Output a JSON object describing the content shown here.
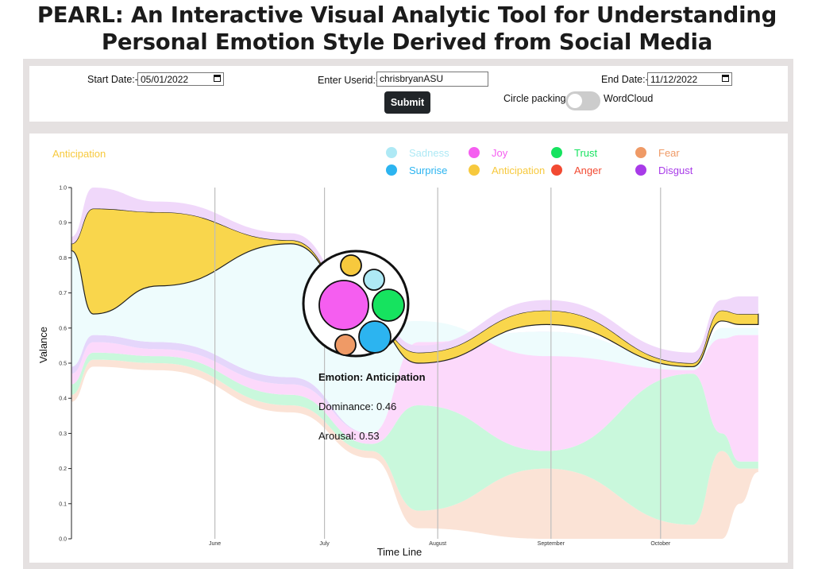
{
  "page_title": "PEARL: An Interactive Visual Analytic Tool for Understanding Personal Emotion Style Derived from Social Media",
  "controls": {
    "start_date_label": "Start Date:-",
    "start_date_value": "05/01/2022",
    "userid_label": "Enter Userid:-",
    "userid_value": "chrisbryanASU",
    "end_date_label": "End Date:-",
    "end_date_value": "11/12/2022",
    "submit_label": "Submit",
    "toggle_left_label": "Circle packing",
    "toggle_right_label": "WordCloud",
    "calendar_icon": "calendar-icon"
  },
  "colors": {
    "sadness": "#aee9f5",
    "surprise": "#2cb4f0",
    "joy": "#f55ef0",
    "anticipation": "#f7c93d",
    "trust": "#16e35f",
    "anger": "#f24a32",
    "fear": "#ef9a66",
    "disgust": "#a83be8"
  },
  "chart_data": {
    "type": "area",
    "selected_emotion_label": "Anticipation",
    "ylabel": "Valance",
    "xlabel": "Time Line",
    "ylim": [
      0.0,
      1.0
    ],
    "y_ticks": [
      "0.0",
      "0.1",
      "0.2",
      "0.3",
      "0.4",
      "0.5",
      "0.6",
      "0.7",
      "0.8",
      "0.9",
      "1.0"
    ],
    "x_ticks": [
      {
        "label": "June",
        "date": "2022-06-01"
      },
      {
        "label": "July",
        "date": "2022-07-01"
      },
      {
        "label": "August",
        "date": "2022-08-01"
      },
      {
        "label": "September",
        "date": "2022-09-01"
      },
      {
        "label": "October",
        "date": "2022-10-01"
      }
    ],
    "grid": "vertical",
    "legend": [
      {
        "name": "Sadness",
        "color": "#aee9f5"
      },
      {
        "name": "Joy",
        "color": "#f55ef0"
      },
      {
        "name": "Trust",
        "color": "#16e35f"
      },
      {
        "name": "Fear",
        "color": "#ef9a66"
      },
      {
        "name": "Surprise",
        "color": "#2cb4f0"
      },
      {
        "name": "Anticipation",
        "color": "#f7c93d"
      },
      {
        "name": "Anger",
        "color": "#f24a32"
      },
      {
        "name": "Disgust",
        "color": "#a83be8"
      }
    ],
    "legend_placement": "top-right",
    "streams": [
      {
        "name": "Fear",
        "lower": [
          [
            0,
            0.39
          ],
          [
            6,
            0.49
          ],
          [
            24,
            0.48
          ],
          [
            60,
            0.36
          ],
          [
            82,
            0.23
          ],
          [
            95,
            0.03
          ],
          [
            130,
            0.0
          ],
          [
            170,
            0.0
          ],
          [
            178,
            0.0
          ],
          [
            183,
            0.1
          ],
          [
            188,
            0.19
          ]
        ],
        "upper": [
          [
            0,
            0.41
          ],
          [
            6,
            0.51
          ],
          [
            24,
            0.5
          ],
          [
            60,
            0.38
          ],
          [
            82,
            0.25
          ],
          [
            95,
            0.08
          ],
          [
            130,
            0.2
          ],
          [
            170,
            0.04
          ],
          [
            178,
            0.25
          ],
          [
            183,
            0.2
          ],
          [
            188,
            0.2
          ]
        ]
      },
      {
        "name": "Trust",
        "lower": [
          [
            0,
            0.41
          ],
          [
            6,
            0.51
          ],
          [
            24,
            0.5
          ],
          [
            60,
            0.38
          ],
          [
            82,
            0.25
          ],
          [
            95,
            0.08
          ],
          [
            130,
            0.2
          ],
          [
            170,
            0.04
          ],
          [
            178,
            0.25
          ],
          [
            183,
            0.2
          ],
          [
            188,
            0.2
          ]
        ],
        "upper": [
          [
            0,
            0.44
          ],
          [
            6,
            0.53
          ],
          [
            24,
            0.52
          ],
          [
            60,
            0.41
          ],
          [
            82,
            0.27
          ],
          [
            95,
            0.38
          ],
          [
            130,
            0.25
          ],
          [
            170,
            0.47
          ],
          [
            178,
            0.3
          ],
          [
            183,
            0.22
          ],
          [
            188,
            0.22
          ]
        ]
      },
      {
        "name": "Joy",
        "lower": [
          [
            0,
            0.44
          ],
          [
            6,
            0.53
          ],
          [
            24,
            0.52
          ],
          [
            60,
            0.41
          ],
          [
            82,
            0.27
          ],
          [
            95,
            0.38
          ],
          [
            130,
            0.25
          ],
          [
            170,
            0.47
          ],
          [
            178,
            0.3
          ],
          [
            183,
            0.22
          ],
          [
            188,
            0.22
          ]
        ],
        "upper": [
          [
            0,
            0.47
          ],
          [
            6,
            0.56
          ],
          [
            24,
            0.54
          ],
          [
            60,
            0.44
          ],
          [
            82,
            0.3
          ],
          [
            95,
            0.56
          ],
          [
            130,
            0.59
          ],
          [
            170,
            0.5
          ],
          [
            178,
            0.57
          ],
          [
            183,
            0.58
          ],
          [
            188,
            0.58
          ]
        ]
      },
      {
        "name": "Disgust",
        "lower": [
          [
            0,
            0.47
          ],
          [
            6,
            0.56
          ],
          [
            24,
            0.54
          ],
          [
            60,
            0.44
          ],
          [
            82,
            0.3
          ],
          [
            95,
            0.56
          ],
          [
            130,
            0.59
          ],
          [
            170,
            0.5
          ],
          [
            178,
            0.57
          ],
          [
            183,
            0.58
          ],
          [
            188,
            0.58
          ]
        ],
        "upper": [
          [
            0,
            0.49
          ],
          [
            6,
            0.58
          ],
          [
            24,
            0.56
          ],
          [
            60,
            0.46
          ],
          [
            82,
            0.3
          ],
          [
            95,
            0.56
          ],
          [
            130,
            0.59
          ],
          [
            170,
            0.5
          ],
          [
            178,
            0.57
          ],
          [
            183,
            0.58
          ],
          [
            188,
            0.58
          ]
        ]
      },
      {
        "name": "Sadness",
        "lower": [
          [
            0,
            0.49
          ],
          [
            6,
            0.58
          ],
          [
            24,
            0.56
          ],
          [
            60,
            0.46
          ],
          [
            82,
            0.3
          ],
          [
            95,
            0.56
          ],
          [
            130,
            0.59
          ],
          [
            170,
            0.5
          ],
          [
            178,
            0.57
          ],
          [
            183,
            0.58
          ],
          [
            188,
            0.58
          ]
        ],
        "upper": [
          [
            0,
            0.82
          ],
          [
            6,
            0.64
          ],
          [
            24,
            0.72
          ],
          [
            60,
            0.84
          ],
          [
            82,
            0.61
          ],
          [
            95,
            0.62
          ],
          [
            130,
            0.52
          ],
          [
            170,
            0.48
          ],
          [
            178,
            0.6
          ],
          [
            183,
            0.6
          ],
          [
            188,
            0.6
          ]
        ]
      },
      {
        "name": "Anticipation",
        "lower": [
          [
            0,
            0.82
          ],
          [
            6,
            0.64
          ],
          [
            24,
            0.72
          ],
          [
            60,
            0.84
          ],
          [
            82,
            0.61
          ],
          [
            95,
            0.5
          ],
          [
            130,
            0.61
          ],
          [
            170,
            0.49
          ],
          [
            178,
            0.62
          ],
          [
            183,
            0.61
          ],
          [
            188,
            0.61
          ]
        ],
        "upper": [
          [
            0,
            0.84
          ],
          [
            6,
            0.94
          ],
          [
            24,
            0.93
          ],
          [
            60,
            0.85
          ],
          [
            82,
            0.61
          ],
          [
            95,
            0.53
          ],
          [
            130,
            0.65
          ],
          [
            170,
            0.5
          ],
          [
            178,
            0.65
          ],
          [
            183,
            0.64
          ],
          [
            188,
            0.64
          ]
        ]
      },
      {
        "name": "Disgust-top",
        "lower": [
          [
            0,
            0.84
          ],
          [
            6,
            0.94
          ],
          [
            24,
            0.93
          ],
          [
            60,
            0.85
          ],
          [
            82,
            0.61
          ],
          [
            95,
            0.53
          ],
          [
            130,
            0.65
          ],
          [
            170,
            0.5
          ],
          [
            178,
            0.65
          ],
          [
            183,
            0.64
          ],
          [
            188,
            0.64
          ]
        ],
        "upper": [
          [
            0,
            0.86
          ],
          [
            6,
            1.0
          ],
          [
            24,
            0.96
          ],
          [
            60,
            0.87
          ],
          [
            82,
            0.63
          ],
          [
            95,
            0.55
          ],
          [
            130,
            0.68
          ],
          [
            170,
            0.53
          ],
          [
            178,
            0.68
          ],
          [
            183,
            0.69
          ],
          [
            188,
            0.69
          ]
        ]
      }
    ],
    "tooltip": {
      "emotion_line": "Emotion: Anticipation",
      "dominance_line": "Dominance: 0.46",
      "arousal_line": "Arousal: 0.53"
    },
    "circle_packing": [
      {
        "name": "Anticipation",
        "color": "#f7c93d"
      },
      {
        "name": "Sadness",
        "color": "#aee9f5"
      },
      {
        "name": "Joy",
        "color": "#f55ef0"
      },
      {
        "name": "Trust",
        "color": "#16e35f"
      },
      {
        "name": "Fear",
        "color": "#ef9a66"
      },
      {
        "name": "Surprise",
        "color": "#2cb4f0"
      }
    ]
  }
}
